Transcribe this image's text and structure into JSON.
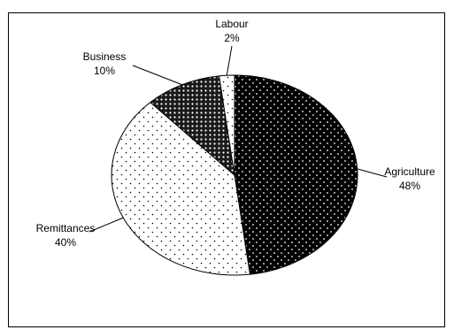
{
  "chart_data": {
    "type": "pie",
    "title": "",
    "slices": [
      {
        "label": "Agriculture",
        "percent_label": "48%",
        "value": 48,
        "pattern": "dense-dots-dark"
      },
      {
        "label": "Remittances",
        "percent_label": "40%",
        "value": 40,
        "pattern": "sparse-dots-light"
      },
      {
        "label": "Business",
        "percent_label": "10%",
        "value": 10,
        "pattern": "medium-dots-dark"
      },
      {
        "label": "Labour",
        "percent_label": "2%",
        "value": 2,
        "pattern": "sparse-dots-light"
      }
    ],
    "legend": "none",
    "data_labels": "outside-with-leader-lines"
  },
  "colors": {
    "background": "#ffffff",
    "outline": "#000000",
    "dark_fill": "#000000",
    "light_fill": "#ffffff"
  }
}
